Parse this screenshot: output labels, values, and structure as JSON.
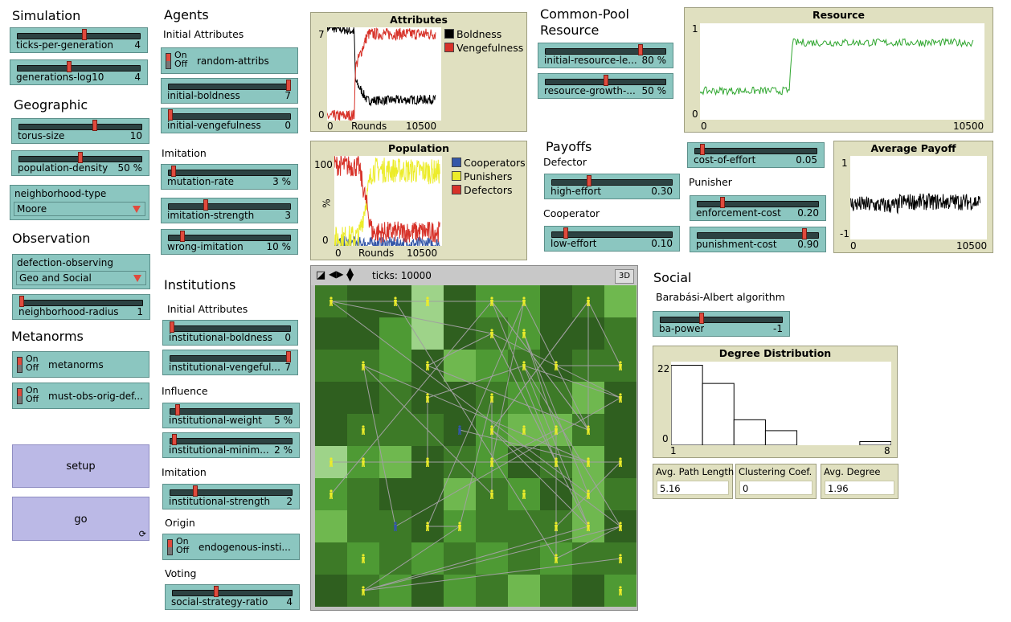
{
  "sections": {
    "simulation": "Simulation",
    "geographic": "Geographic",
    "observation": "Observation",
    "metanorms": "Metanorms",
    "agents": "Agents",
    "institutions": "Institutions",
    "common_pool": "Common-Pool\nResource",
    "payoffs": "Payoffs",
    "social": "Social"
  },
  "subsections": {
    "initial_attributes": "Initial Attributes",
    "imitation": "Imitation",
    "inst_initial_attributes": "Initial Attributes",
    "influence": "Influence",
    "inst_imitation": "Imitation",
    "origin": "Origin",
    "voting": "Voting",
    "defector": "Defector",
    "cooperator": "Cooperator",
    "punisher": "Punisher",
    "barabasi": "Barabási-Albert algorithm"
  },
  "sliders": {
    "ticks_per_generation": {
      "label": "ticks-per-generation",
      "value": "4",
      "level": 0.55
    },
    "generations_log10": {
      "label": "generations-log10",
      "value": "4",
      "level": 0.42
    },
    "torus_size": {
      "label": "torus-size",
      "value": "10",
      "level": 0.62
    },
    "population_density": {
      "label": "population-density",
      "value": "50 %",
      "level": 0.5
    },
    "neighborhood_radius": {
      "label": "neighborhood-radius",
      "value": "1",
      "level": 0.0
    },
    "initial_boldness": {
      "label": "initial-boldness",
      "value": "7",
      "level": 1.0
    },
    "initial_vengefulness": {
      "label": "initial-vengefulness",
      "value": "0",
      "level": 0.0
    },
    "mutation_rate": {
      "label": "mutation-rate",
      "value": "3 %",
      "level": 0.03
    },
    "imitation_strength": {
      "label": "imitation-strength",
      "value": "3",
      "level": 0.3
    },
    "wrong_imitation": {
      "label": "wrong-imitation",
      "value": "10 %",
      "level": 0.1
    },
    "institutional_boldness": {
      "label": "institutional-boldness",
      "value": "0",
      "level": 0.0
    },
    "institutional_vengefulness": {
      "label": "institutional-vengeful...",
      "value": "7",
      "level": 1.0
    },
    "institutional_weight": {
      "label": "institutional-weight",
      "value": "5 %",
      "level": 0.05
    },
    "institutional_minimum": {
      "label": "institutional-minim...",
      "value": "2 %",
      "level": 0.02
    },
    "institutional_strength": {
      "label": "institutional-strength",
      "value": "2",
      "level": 0.2
    },
    "social_strategy_ratio": {
      "label": "social-strategy-ratio",
      "value": "4",
      "level": 0.36
    },
    "initial_resource_level": {
      "label": "initial-resource-le...",
      "value": "80 %",
      "level": 0.8
    },
    "resource_growth": {
      "label": "resource-growth-...",
      "value": "50 %",
      "level": 0.5
    },
    "high_effort": {
      "label": "high-effort",
      "value": "0.30",
      "level": 0.3
    },
    "low_effort": {
      "label": "low-effort",
      "value": "0.10",
      "level": 0.1
    },
    "cost_of_effort": {
      "label": "cost-of-effort",
      "value": "0.05",
      "level": 0.05
    },
    "enforcement_cost": {
      "label": "enforcement-cost",
      "value": "0.20",
      "level": 0.2
    },
    "punishment_cost": {
      "label": "punishment-cost",
      "value": "0.90",
      "level": 0.9
    },
    "ba_power": {
      "label": "ba-power",
      "value": "-1",
      "level": 0.33
    }
  },
  "switches": {
    "on": "On",
    "off": "Off",
    "random_attribs": "random-attribs",
    "metanorms": "metanorms",
    "must_obs": "must-obs-orig-def...",
    "endogenous": "endogenous-insti..."
  },
  "choosers": {
    "neighborhood_type": {
      "label": "neighborhood-type",
      "value": "Moore"
    },
    "defection_observing": {
      "label": "defection-observing",
      "value": "Geo and Social"
    }
  },
  "buttons": {
    "setup": "setup",
    "go": "go"
  },
  "world": {
    "ticks": "ticks: 10000",
    "btn3d": "3D"
  },
  "monitors": {
    "avg_path_length": {
      "label": "Avg. Path Length",
      "value": "5.16"
    },
    "clustering": {
      "label": "Clustering Coef.",
      "value": "0"
    },
    "avg_degree": {
      "label": "Avg. Degree",
      "value": "1.96"
    }
  },
  "colors": {
    "boldness": "#000000",
    "vengefulness": "#d73229",
    "cooperators": "#3457a8",
    "punishers": "#ecec2a",
    "defectors": "#d73229",
    "resource": "#2fa62f",
    "payoff": "#000000"
  },
  "chart_data": [
    {
      "type": "line",
      "title": "Attributes",
      "xlabel": "Rounds",
      "xlim": [
        0,
        10500
      ],
      "ylim": [
        0,
        7
      ],
      "x_tick_labels": [
        "0",
        "10500"
      ],
      "y_tick_labels": [
        "0",
        "7"
      ],
      "series": [
        {
          "name": "Boldness",
          "x": [
            0,
            2500,
            2600,
            3700,
            3800,
            10500
          ],
          "y": [
            7,
            6.7,
            3.0,
            1.5,
            1.5,
            1.6
          ]
        },
        {
          "name": "Vengefulness",
          "x": [
            0,
            2500,
            2600,
            3700,
            3800,
            10500
          ],
          "y": [
            0.3,
            0.4,
            4.0,
            6.4,
            6.5,
            6.5
          ]
        }
      ]
    },
    {
      "type": "line",
      "title": "Population",
      "xlabel": "Rounds",
      "ylabel": "%",
      "xlim": [
        0,
        10500
      ],
      "ylim": [
        0,
        100
      ],
      "x_tick_labels": [
        "0",
        "10500"
      ],
      "y_tick_labels": [
        "0",
        "100"
      ],
      "series": [
        {
          "name": "Cooperators",
          "x": [
            0,
            2400,
            3700,
            10500
          ],
          "y": [
            3,
            3,
            2,
            2
          ]
        },
        {
          "name": "Punishers",
          "x": [
            0,
            2400,
            3700,
            10500
          ],
          "y": [
            8,
            10,
            85,
            82
          ]
        },
        {
          "name": "Defectors",
          "x": [
            0,
            2400,
            3700,
            10500
          ],
          "y": [
            90,
            88,
            15,
            16
          ]
        }
      ]
    },
    {
      "type": "line",
      "title": "Resource",
      "xlim": [
        0,
        10500
      ],
      "ylim": [
        0,
        1
      ],
      "x_tick_labels": [
        "0",
        "10500"
      ],
      "y_tick_labels": [
        "0",
        "1"
      ],
      "series": [
        {
          "x": [
            0,
            3300,
            3400,
            10500
          ],
          "y": [
            0.3,
            0.3,
            0.8,
            0.8
          ]
        }
      ]
    },
    {
      "type": "line",
      "title": "Average Payoff",
      "xlim": [
        0,
        10500
      ],
      "ylim": [
        -1,
        1
      ],
      "x_tick_labels": [
        "0",
        "10500"
      ],
      "y_tick_labels": [
        "-1",
        "1"
      ],
      "series": [
        {
          "x": [
            0,
            3700,
            3800,
            10500
          ],
          "y": [
            -0.15,
            -0.2,
            -0.1,
            -0.1
          ]
        }
      ]
    },
    {
      "type": "bar",
      "title": "Degree Distribution",
      "categories": [
        "1",
        "2",
        "3",
        "4",
        "5",
        "6",
        "7"
      ],
      "values": [
        22,
        17,
        7,
        4,
        0,
        0,
        1
      ],
      "x_tick_labels": [
        "1",
        "8"
      ],
      "y_tick_labels": [
        "0",
        "22"
      ],
      "ylim": [
        0,
        23
      ]
    }
  ]
}
